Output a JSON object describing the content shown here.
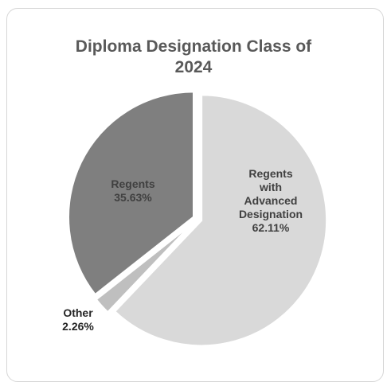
{
  "chart_data": {
    "type": "pie",
    "title_lines": [
      "Diploma Designation Class of",
      "2024"
    ],
    "title": "Diploma Designation Class of 2024",
    "slices": [
      {
        "label": "Regents with Advanced Designation",
        "label_lines": [
          "Regents",
          "with",
          "Advanced",
          "Designation"
        ],
        "value": 62.11,
        "value_label": "62.11%",
        "color": "#d9d9d9",
        "text_color": "#404040"
      },
      {
        "label": "Other",
        "label_lines": [
          "Other"
        ],
        "value": 2.26,
        "value_label": "2.26%",
        "color": "#bfbfbf",
        "text_color": "#262626"
      },
      {
        "label": "Regents",
        "label_lines": [
          "Regents"
        ],
        "value": 35.63,
        "value_label": "35.63%",
        "color": "#7f7f7f",
        "text_color": "#404040"
      }
    ],
    "legend": "none"
  }
}
